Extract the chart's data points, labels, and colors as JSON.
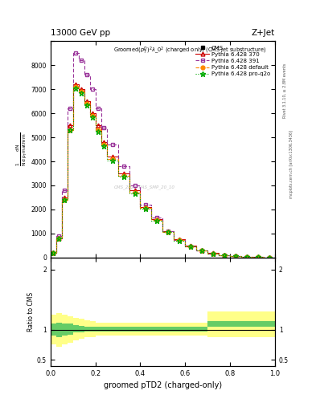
{
  "title_top": "13000 GeV pp",
  "title_right": "Z+Jet",
  "xlabel": "groomed pTD2 (charged-only)",
  "watermark": "CMS_2021_PAS_SMP_20_10",
  "right_label1": "Rivet 3.1.10, ≥ 2.8M events",
  "right_label2": "mcplots.cern.ch [arXiv:1306.3436]",
  "x_bins": [
    0.0,
    0.025,
    0.05,
    0.075,
    0.1,
    0.125,
    0.15,
    0.175,
    0.2,
    0.225,
    0.25,
    0.3,
    0.35,
    0.4,
    0.45,
    0.5,
    0.55,
    0.6,
    0.65,
    0.7,
    0.75,
    0.8,
    0.85,
    0.9,
    0.95,
    1.0
  ],
  "cms_y": [
    0,
    0,
    0,
    0,
    0,
    0,
    0,
    0,
    0,
    0,
    0,
    0,
    0,
    0,
    0,
    0,
    0,
    0,
    0,
    0,
    0,
    0,
    0,
    0,
    0,
    0
  ],
  "py370_y": [
    200,
    800,
    2500,
    5500,
    7200,
    7000,
    6500,
    6000,
    5500,
    4800,
    4200,
    3500,
    2800,
    2100,
    1600,
    1100,
    750,
    480,
    300,
    180,
    100,
    55,
    28,
    13,
    5,
    2
  ],
  "py391_y": [
    200,
    900,
    2800,
    6200,
    8500,
    8200,
    7600,
    7000,
    6200,
    5400,
    4700,
    3800,
    3000,
    2200,
    1650,
    1100,
    730,
    460,
    285,
    170,
    95,
    50,
    25,
    11,
    4,
    1
  ],
  "pydef_y": [
    200,
    800,
    2400,
    5300,
    7100,
    6900,
    6400,
    5900,
    5300,
    4700,
    4100,
    3400,
    2700,
    2050,
    1550,
    1060,
    720,
    460,
    290,
    175,
    98,
    53,
    27,
    12,
    5,
    2
  ],
  "pyproq_y": [
    200,
    800,
    2400,
    5300,
    7050,
    6850,
    6350,
    5850,
    5250,
    4650,
    4050,
    3350,
    2680,
    2030,
    1530,
    1050,
    710,
    455,
    285,
    172,
    96,
    52,
    26,
    12,
    5,
    2
  ],
  "ratio_x_bins": [
    0.0,
    0.025,
    0.05,
    0.075,
    0.1,
    0.125,
    0.15,
    0.175,
    0.2,
    0.225,
    0.25,
    0.3,
    0.35,
    0.4,
    0.45,
    0.5,
    0.55,
    0.6,
    0.65,
    0.7,
    0.75,
    0.8,
    0.85,
    0.9,
    0.95,
    1.0
  ],
  "ratio_green_lo": [
    0.9,
    0.88,
    0.9,
    0.92,
    0.95,
    0.96,
    0.97,
    0.97,
    0.97,
    0.97,
    0.97,
    0.97,
    0.97,
    0.97,
    0.97,
    0.97,
    0.97,
    0.97,
    0.97,
    1.05,
    1.05,
    1.05,
    1.05,
    1.05,
    1.05,
    1.05
  ],
  "ratio_green_hi": [
    1.1,
    1.12,
    1.1,
    1.1,
    1.08,
    1.06,
    1.05,
    1.05,
    1.05,
    1.05,
    1.05,
    1.05,
    1.05,
    1.05,
    1.05,
    1.05,
    1.05,
    1.05,
    1.05,
    1.15,
    1.15,
    1.15,
    1.15,
    1.15,
    1.15,
    1.15
  ],
  "ratio_yellow_lo": [
    0.75,
    0.72,
    0.75,
    0.78,
    0.82,
    0.85,
    0.87,
    0.88,
    0.9,
    0.9,
    0.9,
    0.9,
    0.9,
    0.9,
    0.9,
    0.9,
    0.9,
    0.9,
    0.9,
    0.88,
    0.88,
    0.88,
    0.88,
    0.88,
    0.88,
    0.88
  ],
  "ratio_yellow_hi": [
    1.25,
    1.28,
    1.25,
    1.22,
    1.2,
    1.18,
    1.16,
    1.15,
    1.12,
    1.12,
    1.12,
    1.12,
    1.12,
    1.12,
    1.12,
    1.12,
    1.12,
    1.12,
    1.12,
    1.3,
    1.3,
    1.3,
    1.3,
    1.3,
    1.3,
    1.3
  ],
  "cms_color": "#000000",
  "py370_color": "#cc0000",
  "py391_color": "#993399",
  "pydef_color": "#ff8800",
  "pyproq_color": "#00aa00",
  "green_color": "#66cc66",
  "yellow_color": "#ffff88",
  "ylim_main": [
    0,
    9000
  ],
  "ylim_ratio": [
    0.4,
    2.2
  ],
  "xlim": [
    0.0,
    1.0
  ],
  "yticks_main": [
    0,
    1000,
    2000,
    3000,
    4000,
    5000,
    6000,
    7000,
    8000,
    9000
  ],
  "ytick_labels_main": [
    "0",
    "1000",
    "2000",
    "3000",
    "4000",
    "5000",
    "6000",
    "7000",
    "8000",
    ""
  ],
  "yticks_ratio": [
    0.5,
    1.0,
    2.0
  ],
  "ytick_labels_ratio": [
    "0.5",
    "1",
    "2"
  ]
}
